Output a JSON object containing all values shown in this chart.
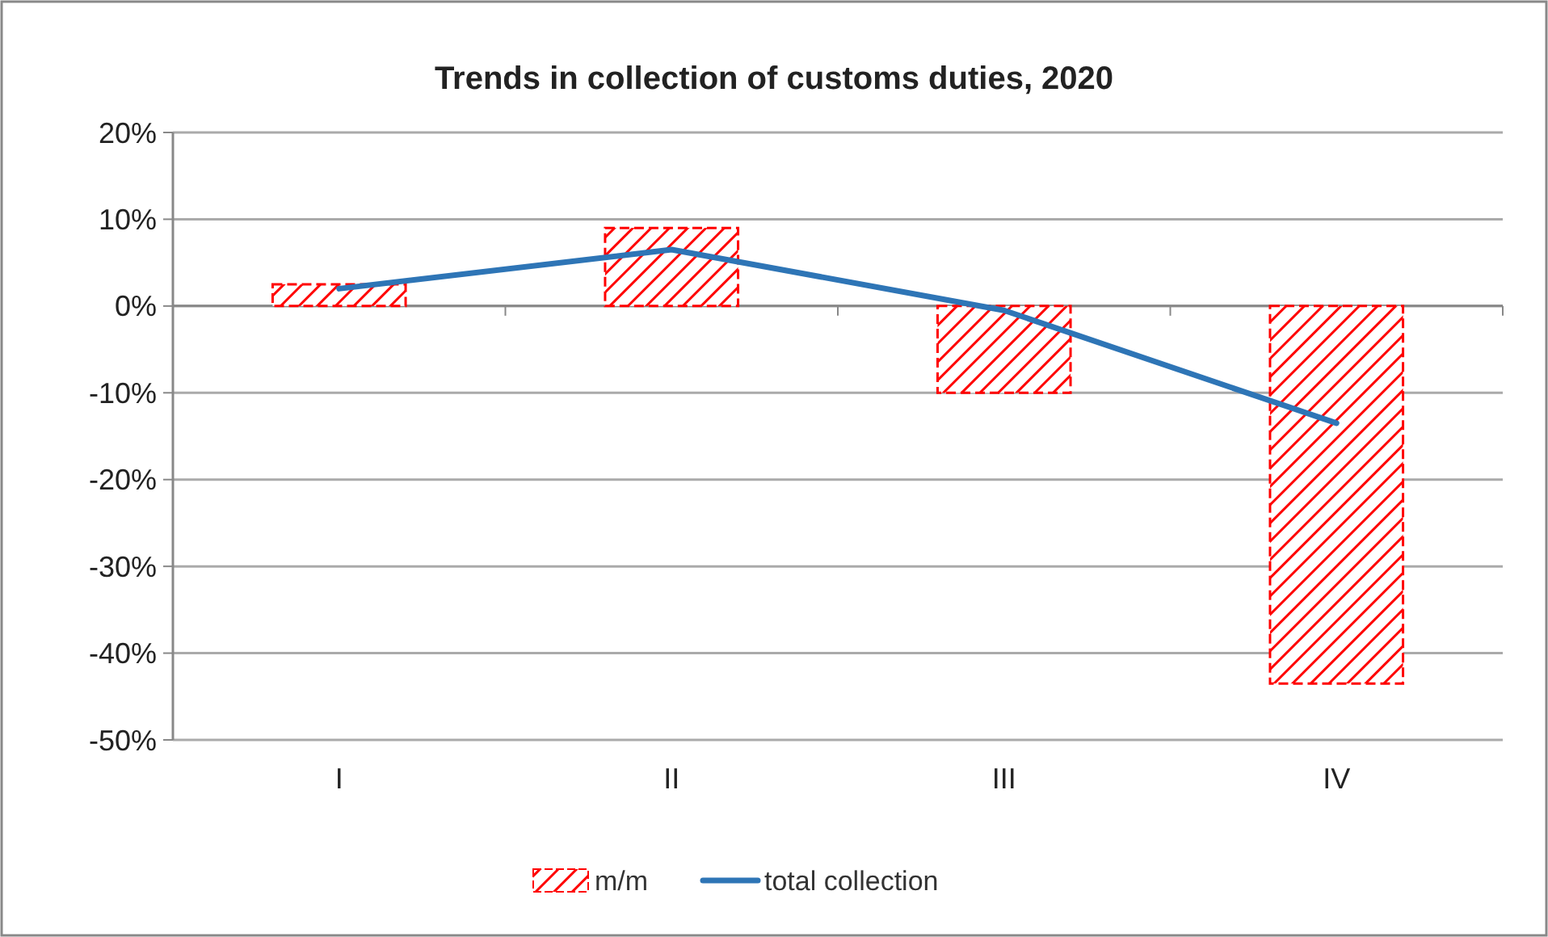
{
  "chart_data": {
    "type": "bar",
    "title": "Trends in collection of customs duties, 2020",
    "categories": [
      "I",
      "II",
      "III",
      "IV"
    ],
    "series": [
      {
        "name": "m/m",
        "color": "#ff0000",
        "values": [
          2.5,
          9,
          -10,
          -43.5
        ]
      },
      {
        "name": "total collection",
        "type": "line",
        "color": "#2e75b6",
        "values": [
          2,
          6.5,
          -0.5,
          -13.5
        ]
      }
    ],
    "ylim": [
      -50,
      20
    ],
    "yticks": [
      {
        "value": -50,
        "label": "-50%"
      },
      {
        "value": -40,
        "label": "-40%"
      },
      {
        "value": -30,
        "label": "-30%"
      },
      {
        "value": -20,
        "label": "-20%"
      },
      {
        "value": -10,
        "label": "-10%"
      },
      {
        "value": 0,
        "label": "0%"
      },
      {
        "value": 10,
        "label": "10%"
      },
      {
        "value": 20,
        "label": "20%"
      }
    ],
    "grid": "y",
    "legend": "bottom"
  }
}
